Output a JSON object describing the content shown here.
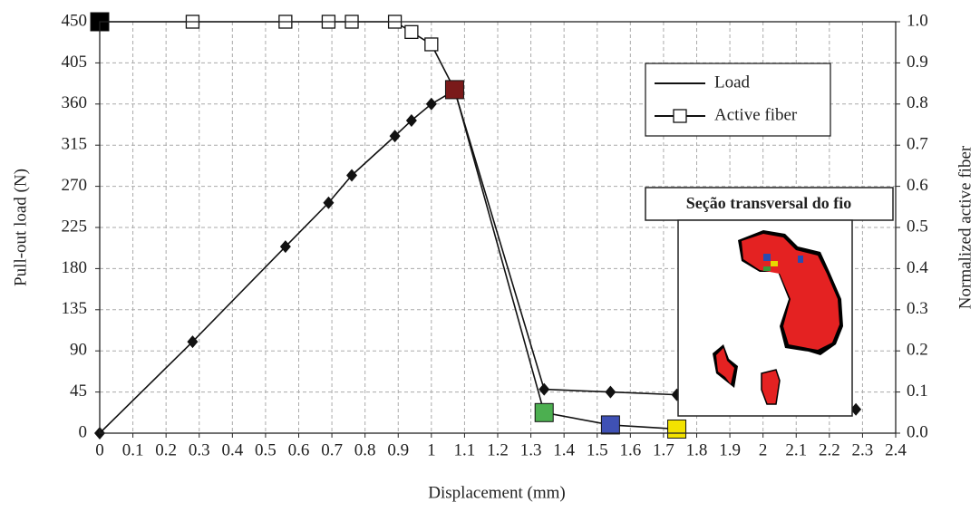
{
  "chart_data": {
    "type": "line",
    "xlabel": "Displacement (mm)",
    "ylabel": "Pull-out load (N)",
    "y2label": "Normalized active fiber",
    "xlim": [
      0,
      2.4
    ],
    "xticks": [
      0,
      0.1,
      0.2,
      0.3,
      0.4,
      0.5,
      0.6,
      0.7,
      0.8,
      0.9,
      1,
      1.1,
      1.2,
      1.3,
      1.4,
      1.5,
      1.6,
      1.7,
      1.8,
      1.9,
      2,
      2.1,
      2.2,
      2.3,
      2.4
    ],
    "ylim": [
      0,
      450
    ],
    "yticks": [
      0,
      45,
      90,
      135,
      180,
      225,
      270,
      315,
      360,
      405,
      450
    ],
    "y2lim": [
      0,
      1
    ],
    "y2ticks": [
      {
        "value": 0,
        "label": "0.0"
      },
      0.1,
      0.2,
      0.3,
      0.4,
      0.5,
      0.6,
      0.7,
      0.8,
      0.9,
      {
        "value": 1,
        "label": "1.0"
      }
    ],
    "grid": true,
    "legend": "upper right",
    "series": [
      {
        "name": "Load",
        "color": "#111111",
        "axis": "y",
        "marker": "diamond",
        "x": [
          0,
          0.28,
          0.56,
          0.69,
          0.76,
          0.89,
          0.94,
          1.0,
          1.07,
          1.34,
          1.54,
          1.74,
          2.28
        ],
        "values": [
          0,
          100,
          204,
          252,
          282,
          325,
          342,
          360,
          375,
          48,
          45,
          42,
          26
        ]
      },
      {
        "name": "Active fiber",
        "color": "#111111",
        "axis": "y2",
        "marker": "square",
        "x": [
          0,
          0.28,
          0.56,
          0.69,
          0.76,
          0.89,
          0.94,
          1.0,
          1.07,
          1.34,
          1.54,
          1.74
        ],
        "values": [
          1.0,
          1.0,
          1.0,
          1.0,
          1.0,
          1.0,
          0.975,
          0.945,
          0.835,
          0.05,
          0.02,
          0.01
        ],
        "marker_colors": [
          "#000000",
          null,
          null,
          null,
          null,
          null,
          null,
          null,
          "#7a1a1a",
          "#4caf50",
          "#3f51b5",
          "#f2e200"
        ]
      }
    ]
  },
  "inset": {
    "title": "Seção transversal do fio"
  }
}
